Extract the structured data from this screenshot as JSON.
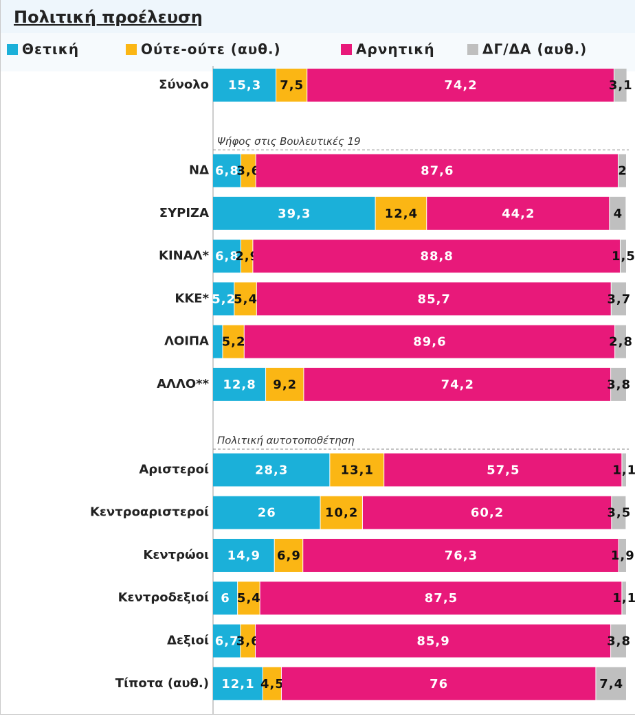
{
  "chart_data": {
    "type": "stacked-bar-horizontal",
    "title": "Πολιτική προέλευση",
    "annotations": [
      "Ψήφος στις Βουλευτικές 19",
      "Πολιτική αυτοτοποθέτηση"
    ],
    "categories": [
      "Σύνολο",
      "ΝΔ",
      "ΣΥΡΙΖΑ",
      "ΚΙΝΑΛ*",
      "ΚΚΕ*",
      "ΛΟΙΠΑ",
      "ΑΛΛΟ**",
      "Αριστεροί",
      "Κεντροαριστεροί",
      "Κεντρώοι",
      "Κεντροδεξιοί",
      "Δεξιοί",
      "Τίποτα (αυθ.)"
    ],
    "xlim": [
      0,
      100
    ],
    "series": [
      {
        "name": "Θετική",
        "color": "#1bb0d9",
        "label_color": "#ffffff",
        "values": [
          15.3,
          6.8,
          39.3,
          6.8,
          5.2,
          2.4,
          12.8,
          28.3,
          26,
          14.9,
          6,
          6.7,
          12.1
        ],
        "value_labels": [
          "15,3",
          "6,8",
          "39,3",
          "6,8",
          "5,2",
          null,
          "12,8",
          "28,3",
          "26",
          "14,9",
          "6",
          "6,7",
          "12,1"
        ]
      },
      {
        "name": "Ούτε-ούτε (αυθ.)",
        "color": "#fbb614",
        "label_color": "#111111",
        "values": [
          7.5,
          3.6,
          12.4,
          2.9,
          5.4,
          5.2,
          9.2,
          13.1,
          10.2,
          6.9,
          5.4,
          3.6,
          4.5
        ],
        "value_labels": [
          "7,5",
          "3,6",
          "12,4",
          "2,9",
          "5,4",
          "5,2",
          "9,2",
          "13,1",
          "10,2",
          "6,9",
          "5,4",
          "3,6",
          "4,5"
        ]
      },
      {
        "name": "Αρνητική",
        "color": "#e8197a",
        "label_color": "#ffffff",
        "values": [
          74.2,
          87.6,
          44.2,
          88.8,
          85.7,
          89.6,
          74.2,
          57.5,
          60.2,
          76.3,
          87.5,
          85.9,
          76
        ],
        "value_labels": [
          "74,2",
          "87,6",
          "44,2",
          "88,8",
          "85,7",
          "89,6",
          "74,2",
          "57,5",
          "60,2",
          "76,3",
          "87,5",
          "85,9",
          "76"
        ]
      },
      {
        "name": "ΔΓ/ΔΑ (αυθ.)",
        "color": "#bfbfbf",
        "label_color": "#111111",
        "values": [
          3.1,
          2,
          4,
          1.5,
          3.7,
          2.8,
          3.8,
          1.1,
          3.5,
          1.9,
          1.1,
          3.8,
          7.4
        ],
        "value_labels": [
          "3,1",
          "2",
          "4",
          "1,5",
          "3,7",
          "2,8",
          "3,8",
          "1,1",
          "3,5",
          "1,9",
          "1,1",
          "3,8",
          "7,4"
        ]
      }
    ]
  }
}
